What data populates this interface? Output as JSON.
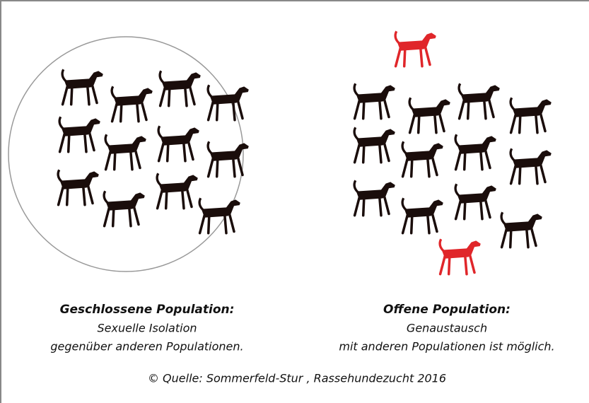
{
  "panels": [
    {
      "title": "Geschlossene Population:",
      "lines": [
        "Sexuelle Isolation",
        "gegenüber anderen Populationen."
      ]
    },
    {
      "title": "Offene Population:",
      "lines": [
        "Genaustausch",
        "mit anderen Populationen ist möglich."
      ]
    }
  ],
  "credit": "© Quelle: Sommerfeld-Stur , Rassehundezucht 2016"
}
